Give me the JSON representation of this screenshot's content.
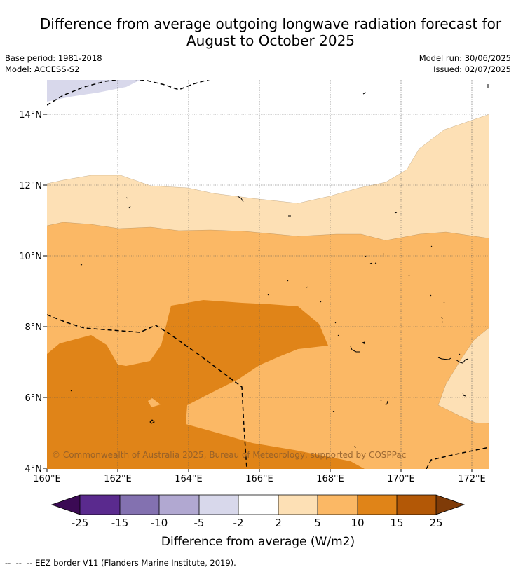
{
  "header": {
    "title_line1": "Difference from average outgoing longwave radiation forecast for",
    "title_line2": "August to October 2025"
  },
  "info": {
    "base_period": "Base period: 1981-2018",
    "model": "Model: ACCESS-S2",
    "model_run": "Model run: 30/06/2025",
    "issued": "Issued: 02/07/2025"
  },
  "map": {
    "lat_labels": [
      "14°N",
      "12°N",
      "10°N",
      "8°N",
      "6°N",
      "4°N"
    ],
    "lon_labels": [
      "160°E",
      "162°E",
      "164°E",
      "166°E",
      "168°E",
      "170°E",
      "172°E"
    ],
    "copyright": "© Commonwealth of Australia 2025, Bureau of Meteorology, supported by COSPPac"
  },
  "colorbar": {
    "tick_labels": [
      "-25",
      "-15",
      "-10",
      "-5",
      "-2",
      "2",
      "5",
      "10",
      "15",
      "25"
    ],
    "colors": [
      "#5a2a8e",
      "#8371b0",
      "#b1a8d1",
      "#d8d8eb",
      "#ffffff",
      "#fde0b5",
      "#fbb865",
      "#e08418",
      "#b35806"
    ],
    "under_color": "#3b0a54",
    "over_color": "#7f3b08",
    "label": "Difference from average (W/m2)"
  },
  "footnote": {
    "text": "--  --  -- EEZ border V11 (Flanders Marine Institute, 2019)."
  }
}
